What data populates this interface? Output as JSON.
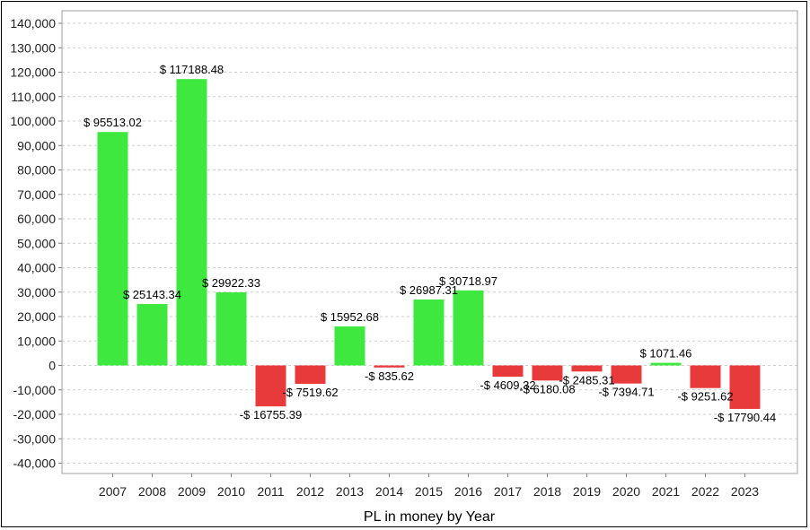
{
  "chart_data": {
    "type": "bar",
    "title": "",
    "xlabel": "PL in money by Year",
    "ylabel": "",
    "ylim": [
      -45000,
      145000
    ],
    "yticks": [
      140000,
      130000,
      120000,
      110000,
      100000,
      90000,
      80000,
      70000,
      60000,
      50000,
      40000,
      30000,
      20000,
      10000,
      0,
      -10000,
      -20000,
      -30000,
      -40000
    ],
    "ytick_labels": [
      "140,000",
      "130,000",
      "120,000",
      "110,000",
      "100,000",
      "90,000",
      "80,000",
      "70,000",
      "60,000",
      "50,000",
      "40,000",
      "30,000",
      "20,000",
      "10,000",
      "0",
      "-10,000",
      "-20,000",
      "-30,000",
      "-40,000"
    ],
    "categories": [
      "2007",
      "2008",
      "2009",
      "2010",
      "2011",
      "2012",
      "2013",
      "2014",
      "2015",
      "2016",
      "2017",
      "2018",
      "2019",
      "2020",
      "2021",
      "2022",
      "2023"
    ],
    "values": [
      95513.02,
      25143.34,
      117188.48,
      29922.33,
      -16755.39,
      -7519.62,
      15952.68,
      -835.62,
      26987.31,
      30718.97,
      -4609.32,
      -6180.08,
      -2485.31,
      -7394.71,
      1071.46,
      -9251.62,
      -17790.44
    ],
    "data_labels": [
      "$ 95513.02",
      "$ 25143.34",
      "$ 117188.48",
      "$ 29922.33",
      "-$ 16755.39",
      "-$ 7519.62",
      "$ 15952.68",
      "-$ 835.62",
      "$ 26987.31",
      "$ 30718.97",
      "-$ 4609.32",
      "-$ 6180.08",
      "-$ 2485.31",
      "-$ 7394.71",
      "$ 1071.46",
      "-$ 9251.62",
      "-$ 17790.44"
    ],
    "grid": true,
    "legend": "none",
    "colors": {
      "positive": "#3ee83e",
      "negative": "#e83a3a"
    }
  }
}
